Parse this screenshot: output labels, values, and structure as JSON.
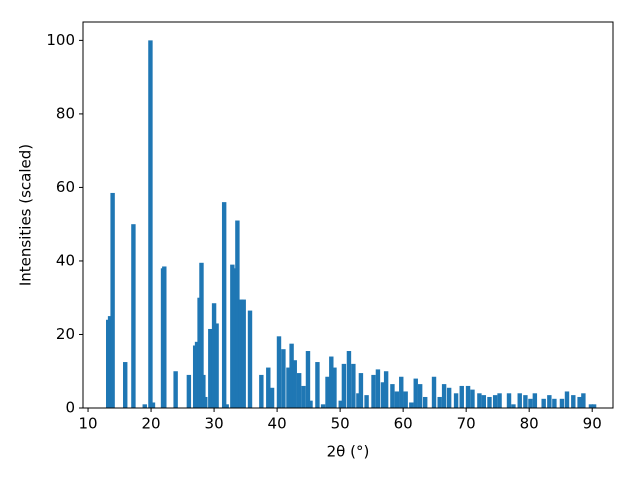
{
  "chart_data": {
    "type": "bar",
    "xlabel": "2θ (°)",
    "ylabel": "Intensities (scaled)",
    "color": "#1f77b4",
    "x": [
      13.2,
      13.5,
      13.9,
      15.9,
      17.2,
      19.0,
      19.9,
      20.3,
      21.9,
      22.1,
      23.9,
      26.0,
      27.0,
      27.3,
      27.7,
      28.0,
      28.3,
      28.6,
      29.4,
      30.0,
      30.4,
      31.6,
      32.0,
      32.9,
      33.3,
      33.7,
      34.3,
      34.7,
      35.7,
      37.5,
      38.6,
      39.2,
      40.3,
      41.0,
      41.8,
      42.3,
      42.8,
      43.5,
      44.2,
      44.9,
      45.3,
      46.4,
      47.3,
      48.0,
      48.6,
      49.1,
      50.1,
      50.6,
      51.4,
      52.1,
      52.9,
      53.3,
      54.2,
      55.3,
      56.0,
      56.8,
      57.3,
      58.3,
      59.0,
      59.7,
      60.4,
      61.3,
      62.0,
      62.7,
      63.5,
      64.9,
      65.8,
      66.5,
      67.3,
      68.4,
      69.3,
      70.3,
      71.0,
      72.1,
      72.8,
      73.7,
      74.6,
      75.3,
      76.8,
      77.5,
      78.5,
      79.4,
      80.2,
      80.9,
      82.3,
      83.2,
      84.0,
      85.2,
      86.0,
      87.0,
      88.0,
      88.6,
      89.8,
      90.3
    ],
    "values": [
      24,
      25,
      58.5,
      12.5,
      50,
      1,
      100,
      1.5,
      38,
      38.5,
      10,
      9,
      17,
      18,
      30,
      39.5,
      9,
      3,
      21.5,
      28.5,
      23,
      56,
      1,
      39,
      38,
      51,
      29.5,
      29.5,
      26.5,
      9,
      11,
      5.5,
      19.5,
      16,
      11,
      17.5,
      13,
      9.5,
      6,
      15.5,
      2,
      12.5,
      1,
      8.5,
      14,
      11,
      2,
      12,
      15.5,
      12,
      4,
      9.5,
      3.5,
      9,
      10.5,
      7,
      10,
      6.5,
      4.5,
      8.5,
      4.5,
      1.5,
      8,
      6.5,
      3,
      8.5,
      3,
      6.5,
      5.5,
      4,
      6,
      6,
      5,
      4,
      3.5,
      3,
      3.5,
      4,
      4,
      1,
      4,
      3.5,
      2.5,
      4,
      2.5,
      3.5,
      2.5,
      2.5,
      4.5,
      3.5,
      3,
      4,
      1,
      1
    ],
    "xlim": [
      9.2,
      93.3
    ],
    "ylim": [
      0,
      105
    ],
    "xticks": [
      10,
      20,
      30,
      40,
      50,
      60,
      70,
      80,
      90
    ],
    "yticks": [
      0,
      20,
      40,
      60,
      80,
      100
    ],
    "grid": false
  }
}
